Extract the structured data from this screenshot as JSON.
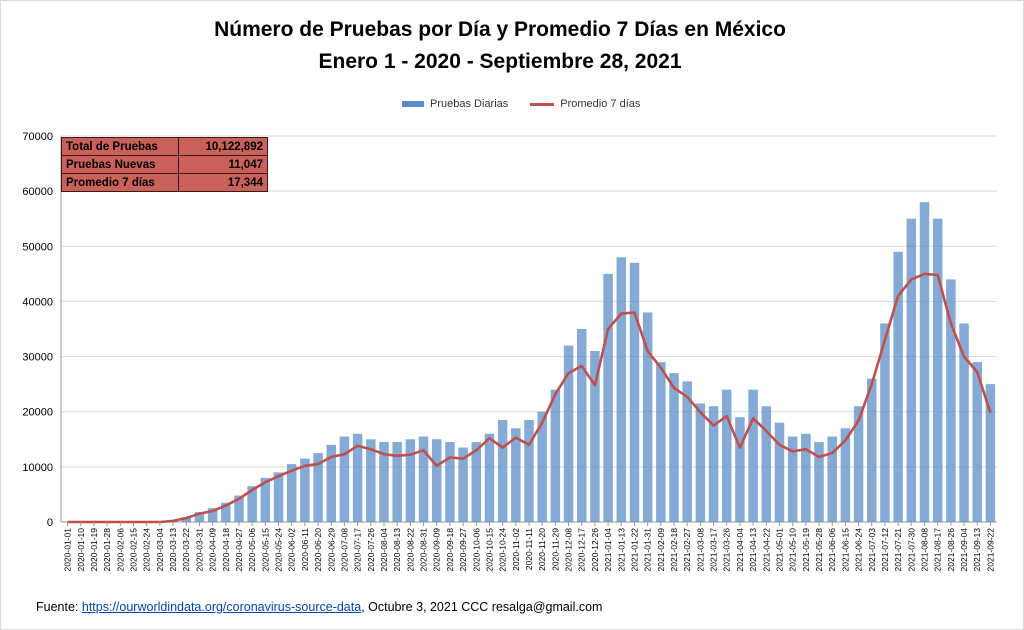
{
  "chart_data": {
    "type": "bar",
    "title": "Número de Pruebas por Día  y Promedio 7 Días en México",
    "subtitle": "Enero 1 - 2020 - Septiembre 28, 2021",
    "xlabel": "",
    "ylabel": "",
    "ylim": [
      0,
      70000
    ],
    "yticks": [
      0,
      10000,
      20000,
      30000,
      40000,
      50000,
      60000,
      70000
    ],
    "grid": true,
    "legend_position": "top-center",
    "categories": [
      "2020-01-01",
      "2020-01-10",
      "2020-01-19",
      "2020-01-28",
      "2020-02-06",
      "2020-02-15",
      "2020-02-24",
      "2020-03-04",
      "2020-03-13",
      "2020-03-22",
      "2020-03-31",
      "2020-04-09",
      "2020-04-18",
      "2020-04-27",
      "2020-05-06",
      "2020-05-15",
      "2020-05-24",
      "2020-06-02",
      "2020-06-11",
      "2020-06-20",
      "2020-06-29",
      "2020-07-08",
      "2020-07-17",
      "2020-07-26",
      "2020-08-04",
      "2020-08-13",
      "2020-08-22",
      "2020-08-31",
      "2020-09-09",
      "2020-09-18",
      "2020-09-27",
      "2020-10-06",
      "2020-10-15",
      "2020-10-24",
      "2020-11-02",
      "2020-11-11",
      "2020-11-20",
      "2020-11-29",
      "2020-12-08",
      "2020-12-17",
      "2020-12-26",
      "2021-01-04",
      "2021-01-13",
      "2021-01-22",
      "2021-01-31",
      "2021-02-09",
      "2021-02-18",
      "2021-02-27",
      "2021-03-08",
      "2021-03-17",
      "2021-03-26",
      "2021-04-04",
      "2021-04-13",
      "2021-04-22",
      "2021-05-01",
      "2021-05-10",
      "2021-05-19",
      "2021-05-28",
      "2021-06-06",
      "2021-06-15",
      "2021-06-24",
      "2021-07-03",
      "2021-07-12",
      "2021-07-21",
      "2021-07-30",
      "2021-08-08",
      "2021-08-17",
      "2021-08-26",
      "2021-09-04",
      "2021-09-13",
      "2021-09-22"
    ],
    "series": [
      {
        "name": "Pruebas Diarias",
        "color": "#5b8ec7",
        "values": [
          0,
          0,
          0,
          0,
          0,
          0,
          0,
          0,
          200,
          900,
          1800,
          2500,
          3500,
          4800,
          6500,
          8000,
          9000,
          10500,
          11500,
          12500,
          14000,
          15500,
          16000,
          15000,
          14500,
          14500,
          15000,
          15500,
          15000,
          14500,
          13500,
          14500,
          16000,
          18500,
          17000,
          18500,
          20000,
          24000,
          32000,
          35000,
          31000,
          45000,
          48000,
          47000,
          38000,
          29000,
          27000,
          25500,
          21500,
          21000,
          24000,
          19000,
          24000,
          21000,
          18000,
          15500,
          16000,
          14500,
          15500,
          17000,
          21000,
          26000,
          36000,
          49000,
          55000,
          58000,
          55000,
          44000,
          36000,
          29000,
          25000
        ]
      },
      {
        "name": "Promedio 7 días",
        "color": "#c0504d",
        "values": [
          0,
          0,
          0,
          0,
          0,
          0,
          0,
          0,
          200,
          700,
          1500,
          2000,
          3000,
          4200,
          5800,
          7200,
          8300,
          9300,
          10200,
          10500,
          11800,
          12300,
          13800,
          13200,
          12300,
          12000,
          12200,
          13000,
          10200,
          11700,
          11500,
          13000,
          15200,
          13500,
          15300,
          14000,
          18000,
          23200,
          27000,
          28300,
          24800,
          35000,
          37800,
          38000,
          31000,
          28000,
          24300,
          22700,
          19900,
          17500,
          19200,
          13500,
          18800,
          16500,
          14000,
          12800,
          13200,
          11800,
          12500,
          14800,
          18400,
          25000,
          33000,
          41000,
          44000,
          45000,
          44800,
          36000,
          30000,
          27200,
          19800
        ]
      }
    ]
  },
  "legend": {
    "bar_label": "Pruebas Diarias",
    "line_label": "Promedio 7 días"
  },
  "stats": [
    {
      "label": "Total de Pruebas",
      "value": "10,122,892"
    },
    {
      "label": "Pruebas Nuevas",
      "value": "11,047"
    },
    {
      "label": "Promedio 7 días",
      "value": "17,344"
    }
  ],
  "footer": {
    "prefix": "Fuente:",
    "link": "https://ourworldindata.org/coronavirus-source-data",
    "rest": ",   Octubre 3, 2021    CCC    resalga@gmail.com"
  }
}
